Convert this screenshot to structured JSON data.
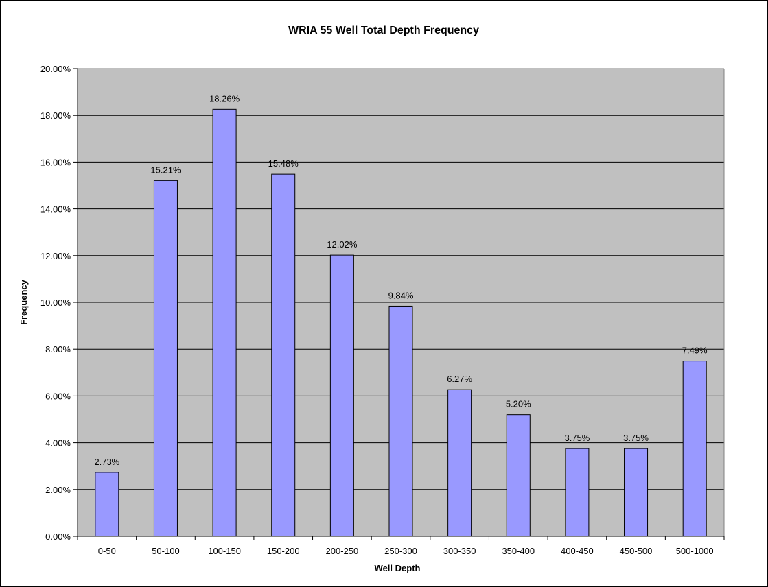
{
  "chart_data": {
    "type": "bar",
    "title": "WRIA 55 Well Total Depth Frequency",
    "xlabel": "Well Depth",
    "ylabel": "Frequency",
    "categories": [
      "0-50",
      "50-100",
      "100-150",
      "150-200",
      "200-250",
      "250-300",
      "300-350",
      "350-400",
      "400-450",
      "450-500",
      "500-1000"
    ],
    "values": [
      2.73,
      15.21,
      18.26,
      15.48,
      12.02,
      9.84,
      6.27,
      5.2,
      3.75,
      3.75,
      7.49
    ],
    "value_labels": [
      "2.73%",
      "15.21%",
      "18.26%",
      "15.48%",
      "12.02%",
      "9.84%",
      "6.27%",
      "5.20%",
      "3.75%",
      "3.75%",
      "7.49%"
    ],
    "ylim": [
      0,
      20
    ],
    "yticks": [
      0,
      2,
      4,
      6,
      8,
      10,
      12,
      14,
      16,
      18,
      20
    ],
    "ytick_labels": [
      "0.00%",
      "2.00%",
      "4.00%",
      "6.00%",
      "8.00%",
      "10.00%",
      "12.00%",
      "14.00%",
      "16.00%",
      "18.00%",
      "20.00%"
    ],
    "grid": true,
    "legend": "none",
    "colors": {
      "bar_fill": "#9999ff",
      "bar_stroke": "#000000",
      "plot_background": "#c0c0c0",
      "gridline": "#000000"
    }
  }
}
